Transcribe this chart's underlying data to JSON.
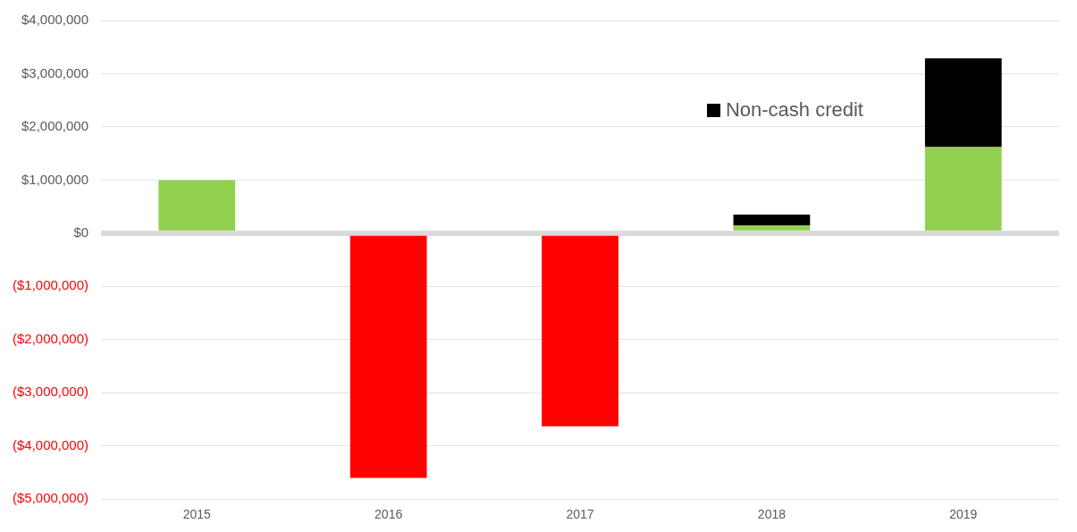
{
  "chart_data": {
    "type": "bar",
    "stacked": true,
    "categories": [
      "2015",
      "2016",
      "2017",
      "2018",
      "2019"
    ],
    "series": [
      {
        "colors": [
          "#92d050",
          "#ff0000",
          "#ff0000",
          "#92d050",
          "#92d050"
        ],
        "values": [
          1000000,
          -4600000,
          -3630000,
          150000,
          1620000
        ]
      },
      {
        "name": "Non-cash credit",
        "color": "#000000",
        "values": [
          null,
          null,
          null,
          200000,
          1670000
        ]
      }
    ],
    "ylim": [
      -5000000,
      4000000
    ],
    "yticks": [
      {
        "value": 4000000,
        "label": "$4,000,000"
      },
      {
        "value": 3000000,
        "label": "$3,000,000"
      },
      {
        "value": 2000000,
        "label": "$2,000,000"
      },
      {
        "value": 1000000,
        "label": "$1,000,000"
      },
      {
        "value": 0,
        "label": "$0"
      },
      {
        "value": -1000000,
        "label": "($1,000,000)"
      },
      {
        "value": -2000000,
        "label": "($2,000,000)"
      },
      {
        "value": -3000000,
        "label": "($3,000,000)"
      },
      {
        "value": -4000000,
        "label": "($4,000,000)"
      },
      {
        "value": -5000000,
        "label": "($5,000,000)"
      }
    ],
    "grid": "y",
    "legend": "top right"
  }
}
